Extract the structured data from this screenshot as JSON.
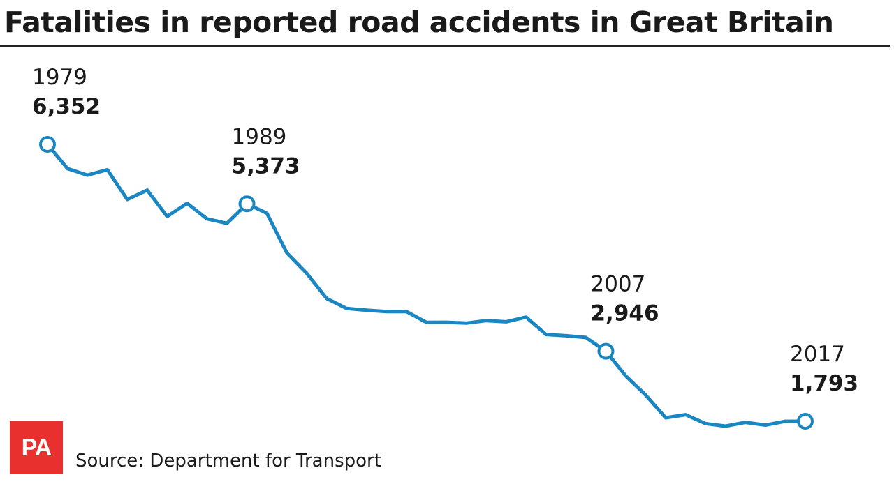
{
  "chart_data": {
    "type": "line",
    "title": "Fatalities in reported road accidents in Great Britain",
    "source": "Source: Department for Transport",
    "logo": "PA",
    "grid": false,
    "line_color": "#1a87c3",
    "x": [
      1979,
      1980,
      1981,
      1982,
      1983,
      1984,
      1985,
      1986,
      1987,
      1988,
      1989,
      1990,
      1991,
      1992,
      1993,
      1994,
      1995,
      1996,
      1997,
      1998,
      1999,
      2000,
      2001,
      2002,
      2003,
      2004,
      2005,
      2006,
      2007,
      2008,
      2009,
      2010,
      2011,
      2012,
      2013,
      2014,
      2015,
      2016,
      2017
    ],
    "values": [
      6352,
      5953,
      5846,
      5934,
      5445,
      5599,
      5165,
      5382,
      5125,
      5052,
      5373,
      5217,
      4568,
      4229,
      3814,
      3650,
      3621,
      3598,
      3599,
      3421,
      3423,
      3409,
      3450,
      3431,
      3508,
      3221,
      3201,
      3172,
      2946,
      2538,
      2222,
      1850,
      1901,
      1754,
      1713,
      1775,
      1730,
      1792,
      1793
    ],
    "annotations": [
      {
        "year": "1979",
        "value": "6,352"
      },
      {
        "year": "1989",
        "value": "5,373"
      },
      {
        "year": "2007",
        "value": "2,946"
      },
      {
        "year": "2017",
        "value": "1,793"
      }
    ]
  }
}
